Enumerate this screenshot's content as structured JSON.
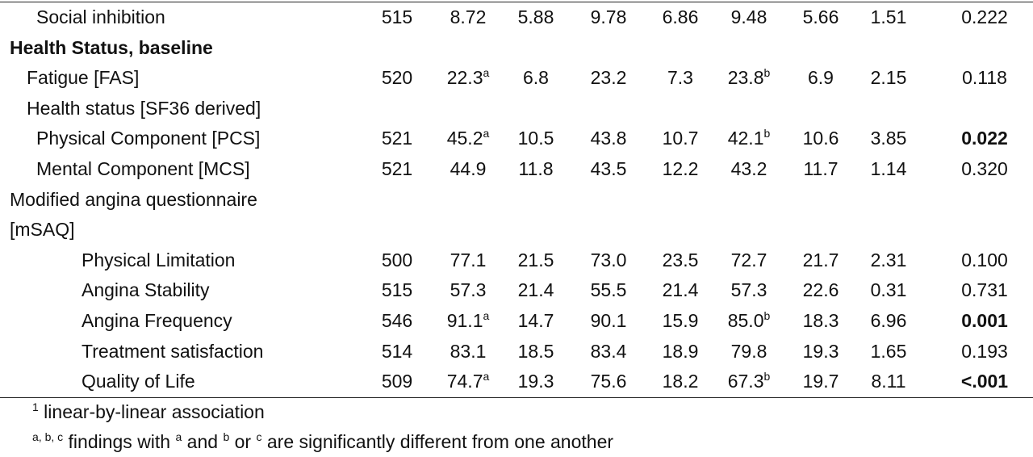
{
  "table": {
    "rows": [
      {
        "label": "Social inhibition",
        "level": 2,
        "cells": [
          {
            "text": "515"
          },
          {
            "text": "8.72"
          },
          {
            "text": "5.88"
          },
          {
            "text": "9.78"
          },
          {
            "text": "6.86"
          },
          {
            "text": "9.48"
          },
          {
            "text": "5.66"
          },
          {
            "text": "1.51"
          },
          {
            "text": "0.222"
          }
        ]
      },
      {
        "label": "Health Status, baseline",
        "level": 0,
        "bold": true,
        "cells": []
      },
      {
        "label": "Fatigue [FAS]",
        "level": 1,
        "cells": [
          {
            "text": "520"
          },
          {
            "text": "22.3",
            "sup": "a"
          },
          {
            "text": "6.8"
          },
          {
            "text": "23.2"
          },
          {
            "text": "7.3"
          },
          {
            "text": "23.8",
            "sup": "b"
          },
          {
            "text": "6.9"
          },
          {
            "text": "2.15"
          },
          {
            "text": "0.118"
          }
        ]
      },
      {
        "label": "Health status [SF36 derived]",
        "level": 1,
        "cells": []
      },
      {
        "label": "Physical Component [PCS]",
        "level": 2,
        "cells": [
          {
            "text": "521"
          },
          {
            "text": "45.2",
            "sup": "a"
          },
          {
            "text": "10.5"
          },
          {
            "text": "43.8"
          },
          {
            "text": "10.7"
          },
          {
            "text": "42.1",
            "sup": "b"
          },
          {
            "text": "10.6"
          },
          {
            "text": "3.85"
          },
          {
            "text": "0.022",
            "bold": true
          }
        ]
      },
      {
        "label": "Mental Component [MCS]",
        "level": 2,
        "cells": [
          {
            "text": "521"
          },
          {
            "text": "44.9"
          },
          {
            "text": "11.8"
          },
          {
            "text": "43.5"
          },
          {
            "text": "12.2"
          },
          {
            "text": "43.2"
          },
          {
            "text": "11.7"
          },
          {
            "text": "1.14"
          },
          {
            "text": "0.320"
          }
        ]
      },
      {
        "label": "Modified angina questionnaire [mSAQ]",
        "level": 0,
        "cells": []
      },
      {
        "label": "Physical Limitation",
        "level": 3,
        "cells": [
          {
            "text": "500"
          },
          {
            "text": "77.1"
          },
          {
            "text": "21.5"
          },
          {
            "text": "73.0"
          },
          {
            "text": "23.5"
          },
          {
            "text": "72.7"
          },
          {
            "text": "21.7"
          },
          {
            "text": "2.31"
          },
          {
            "text": "0.100"
          }
        ]
      },
      {
        "label": "Angina Stability",
        "level": 3,
        "cells": [
          {
            "text": "515"
          },
          {
            "text": "57.3"
          },
          {
            "text": "21.4"
          },
          {
            "text": "55.5"
          },
          {
            "text": "21.4"
          },
          {
            "text": "57.3"
          },
          {
            "text": "22.6"
          },
          {
            "text": "0.31"
          },
          {
            "text": "0.731"
          }
        ]
      },
      {
        "label": "Angina Frequency",
        "level": 3,
        "cells": [
          {
            "text": "546"
          },
          {
            "text": "91.1",
            "sup": "a"
          },
          {
            "text": "14.7"
          },
          {
            "text": "90.1"
          },
          {
            "text": "15.9"
          },
          {
            "text": "85.0",
            "sup": "b"
          },
          {
            "text": "18.3"
          },
          {
            "text": "6.96"
          },
          {
            "text": "0.001",
            "bold": true
          }
        ]
      },
      {
        "label": "Treatment satisfaction",
        "level": 3,
        "cells": [
          {
            "text": "514"
          },
          {
            "text": "83.1"
          },
          {
            "text": "18.5"
          },
          {
            "text": "83.4"
          },
          {
            "text": "18.9"
          },
          {
            "text": "79.8"
          },
          {
            "text": "19.3"
          },
          {
            "text": "1.65"
          },
          {
            "text": "0.193"
          }
        ]
      },
      {
        "label": "Quality of Life",
        "level": 3,
        "cells": [
          {
            "text": "509"
          },
          {
            "text": "74.7",
            "sup": "a"
          },
          {
            "text": "19.3"
          },
          {
            "text": "75.6"
          },
          {
            "text": "18.2"
          },
          {
            "text": "67.3",
            "sup": "b"
          },
          {
            "text": "19.7"
          },
          {
            "text": "8.11"
          },
          {
            "text": "<.001",
            "bold": true
          }
        ]
      }
    ]
  },
  "footnotes": [
    [
      {
        "sup": "1"
      },
      {
        "text": " linear-by-linear association"
      }
    ],
    [
      {
        "sup": "a, b, c"
      },
      {
        "text": " findings with "
      },
      {
        "sup": "a"
      },
      {
        "text": " and "
      },
      {
        "sup": "b"
      },
      {
        "text": " or "
      },
      {
        "sup": "c"
      },
      {
        "text": " are significantly different from one another"
      }
    ]
  ]
}
